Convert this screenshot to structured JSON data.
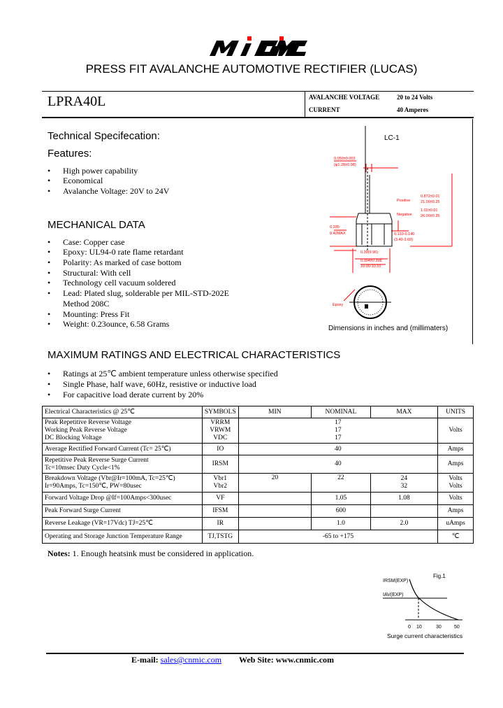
{
  "logo": {
    "text": "MIC MC",
    "colors": {
      "black": "#000000",
      "red": "#ff0000"
    }
  },
  "title": "PRESS FIT AVALANCHE AUTOMOTIVE RECTIFIER (LUCAS)",
  "part_number": "LPRA40L",
  "summary": [
    {
      "label": "AVALANCHE VOLTAGE",
      "value": "20 to 24 Volts"
    },
    {
      "label": "CURRENT",
      "value": "40 Amperes"
    }
  ],
  "tech_spec_heading": "Technical Specifecation:",
  "features_heading": "Features:",
  "features": [
    "High power capability",
    "Economical",
    "Avalanche Voltage: 20V to 24V"
  ],
  "mech_heading": "MECHANICAL DATA",
  "mech": [
    "Case: Copper case",
    "Epoxy: UL94-0 rate flame retardant",
    "Polarity: As marked of case bottom",
    "Structural: With cell",
    "Technology cell vacuum soldered",
    "Lead: Plated slug, solderable per MIL-STD-202E",
    "Method 208C",
    "Mounting: Press Fit",
    "Weight: 0.23ounce, 6.58 Grams"
  ],
  "diagram": {
    "package": "LC-1",
    "lead_dim": [
      "0.050±0.003",
      "(φ1.28±0.08)"
    ],
    "positive": "Positive",
    "negative": "Negative",
    "len1": [
      "0.872±0.01",
      "21.00±0.25"
    ],
    "len2": [
      "1.02±0.01",
      "26.00±0.25"
    ],
    "body_h": [
      "0.335",
      "0.42MAX"
    ],
    "body_d": [
      "0.133-0.140",
      "(3.40-3.60)"
    ],
    "dia1": "0.39(9.96)",
    "dia2": [
      "0.394±0.398",
      "10.00-10.10"
    ],
    "epoxy": "Epoxy",
    "caption": "Dimensions in inches and (millimaters)",
    "red": "#ff0000"
  },
  "ratings_heading": "MAXIMUM RATINGS AND ELECTRICAL CHARACTERISTICS",
  "ratings_notes": [
    "Ratings at 25℃ ambient temperature unless otherwise specified",
    "Single Phase, half wave, 60Hz, resistive or inductive load",
    "For capacitive load derate current by 20%"
  ],
  "table": {
    "headers": [
      "Electrical Characteristics @ 25℃",
      "SYMBOLS",
      "MIN",
      "NOMINAL",
      "MAX",
      "UNITS"
    ],
    "rows": [
      {
        "param": [
          "Peak Repetitive Reverse Voltage",
          "Working Peak Reverse Voltage",
          "DC Blocking Voltage"
        ],
        "sym": [
          "VRRM",
          "VRWM",
          "VDC"
        ],
        "span": [
          "17",
          "17",
          "17"
        ],
        "unit": "Volts"
      },
      {
        "param": [
          "Average Rectified Forward Current (Tc= 25℃)"
        ],
        "sym": [
          "IO"
        ],
        "span": [
          "40"
        ],
        "unit": "Amps"
      },
      {
        "param": [
          "Repetitive Peak Reverse Surge Current",
          "Tc=10msec Duty Cycle<1%"
        ],
        "sym": [
          "IRSM"
        ],
        "span": [
          "40"
        ],
        "unit": "Amps"
      },
      {
        "param": [
          "Breakdown Voltage (Vbr@Ir=100mA, Tc=25℃)",
          "Ir=90Amps, Tc=150℃, PW=80usec"
        ],
        "sym": [
          "Vbr1",
          "Vbr2"
        ],
        "min": [
          "20",
          ""
        ],
        "nom": [
          "22",
          ""
        ],
        "max": [
          "24",
          "32"
        ],
        "unit": [
          "Volts",
          "Volts"
        ]
      },
      {
        "param": [
          "Forward Voltage Drop @If=100Amps<300usec"
        ],
        "sym": [
          "VF"
        ],
        "min": [
          ""
        ],
        "nom": [
          "1.05"
        ],
        "max": [
          "1.08"
        ],
        "unit": [
          "Volts"
        ]
      },
      {
        "param": [
          "Peak Forward Surge Current"
        ],
        "sym": [
          "IFSM"
        ],
        "min": [
          ""
        ],
        "nom": [
          "600"
        ],
        "max": [
          ""
        ],
        "unit": [
          "Amps"
        ]
      },
      {
        "param": [
          "Reverse Leakage (VR=17Vdc) TJ=25℃"
        ],
        "sym": [
          "IR"
        ],
        "min": [
          ""
        ],
        "nom": [
          "1.0"
        ],
        "max": [
          "2.0"
        ],
        "unit": [
          "uAmps"
        ]
      },
      {
        "param": [
          "Operating and Storage Junction Temperature Range"
        ],
        "sym": [
          "TJ,TSTG"
        ],
        "span": [
          "-65 to +175"
        ],
        "unit": "℃"
      }
    ]
  },
  "notes": {
    "label": "Notes:",
    "text": "1. Enough heatsink must be considered in application."
  },
  "fig": {
    "title": "Fig.1",
    "y1": "IRSM(EXP)",
    "y2": "IAV(EXP)",
    "ticks": [
      "0",
      "10",
      "30",
      "50"
    ],
    "caption": "Surge current characteristics"
  },
  "footer": {
    "email_label": "E-mail:",
    "email": "sales@cnmic.com",
    "web_label": "Web Site:",
    "web": "www.cnmic.com",
    "link_color": "#0000ff"
  }
}
